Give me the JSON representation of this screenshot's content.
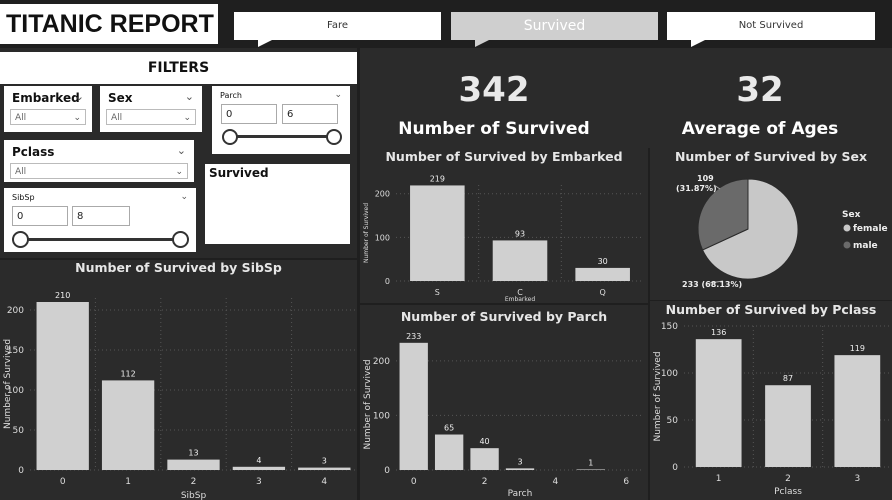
{
  "header": {
    "title": "TITANIC REPORT"
  },
  "nav": [
    {
      "label": "Fare",
      "active": false
    },
    {
      "label": "Survived",
      "active": true
    },
    {
      "label": "Not Survived",
      "active": false
    }
  ],
  "filters": {
    "heading": "FILTERS",
    "embarked": {
      "label": "Embarked",
      "value": "All"
    },
    "sex": {
      "label": "Sex",
      "value": "All"
    },
    "pclass": {
      "label": "Pclass",
      "value": "All"
    },
    "parch": {
      "label": "Parch",
      "min": "0",
      "max": "6"
    },
    "sibsp": {
      "label": "SibSp",
      "min": "0",
      "max": "8"
    },
    "survived": {
      "label": "Survived"
    }
  },
  "kpis": {
    "survived": {
      "value": "342",
      "label": "Number of Survived"
    },
    "age": {
      "value": "32",
      "label": "Average of Ages"
    }
  },
  "colors": {
    "bar": "#d0d0d0",
    "pie_female": "#c8c8c8",
    "pie_male": "#6a6a6a"
  },
  "chart_data": [
    {
      "id": "embarked",
      "type": "bar",
      "title": "Number of Survived by Embarked",
      "categories": [
        "S",
        "C",
        "Q"
      ],
      "values": [
        219,
        93,
        30
      ],
      "xlabel": "Embarked",
      "ylabel": "Number of Survived",
      "ylim": [
        0,
        220
      ],
      "yticks": [
        0,
        100,
        200
      ]
    },
    {
      "id": "sex",
      "type": "pie",
      "title": "Number of Survived by Sex",
      "legend_title": "Sex",
      "legend_position": "right",
      "slices": [
        {
          "name": "female",
          "value": 233,
          "label": "233 (68.13%)"
        },
        {
          "name": "male",
          "value": 109,
          "label": "109\n(31.87%)"
        }
      ]
    },
    {
      "id": "sibsp",
      "type": "bar",
      "title": "Number of Survived by SibSp",
      "categories": [
        "0",
        "1",
        "2",
        "3",
        "4"
      ],
      "values": [
        210,
        112,
        13,
        4,
        3
      ],
      "xlabel": "SibSp",
      "ylabel": "Number of Survived",
      "ylim": [
        0,
        215
      ],
      "yticks": [
        0,
        50,
        100,
        150,
        200
      ]
    },
    {
      "id": "parch",
      "type": "bar",
      "title": "Number of Survived by Parch",
      "x_numeric": true,
      "xticks": [
        0,
        2,
        4,
        6
      ],
      "x": [
        0,
        1,
        2,
        3,
        5
      ],
      "values": [
        233,
        65,
        40,
        3,
        1
      ],
      "xlabel": "Parch",
      "ylabel": "Number of Survived",
      "ylim": [
        0,
        240
      ],
      "yticks": [
        0,
        100,
        200
      ]
    },
    {
      "id": "pclass",
      "type": "bar",
      "title": "Number of Survived by Pclass",
      "categories": [
        "1",
        "2",
        "3"
      ],
      "values": [
        136,
        87,
        119
      ],
      "xlabel": "Pclass",
      "ylabel": "Number of Survived",
      "ylim": [
        0,
        150
      ],
      "yticks": [
        0,
        50,
        100,
        150
      ]
    }
  ]
}
